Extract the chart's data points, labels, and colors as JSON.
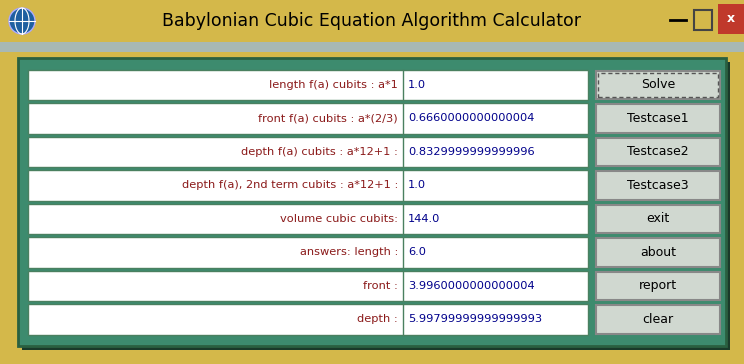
{
  "title": "Babylonian Cubic Equation Algorithm Calculator",
  "title_fontsize": 12.5,
  "bg_outer": "#D4B84A",
  "bg_inner": "#3D8B6E",
  "bg_strip": "#A8B8B4",
  "row_labels": [
    "length f(a) cubits : a*1",
    "front f(a) cubits : a*(2/3)",
    "depth f(a) cubits : a*12+1 :",
    "depth f(a), 2nd term cubits : a*12+1 :",
    "volume cubic cubits:",
    "answers: length :",
    "front :",
    "depth :"
  ],
  "row_values": [
    "1.0",
    "0.6660000000000004",
    "0.8329999999999996",
    "1.0",
    "144.0",
    "6.0",
    "3.9960000000000004",
    "5.99799999999999993"
  ],
  "buttons": [
    "Solve",
    "Testcase1",
    "Testcase2",
    "Testcase3",
    "exit",
    "about",
    "report",
    "clear"
  ],
  "btn_bg": "#D0D8D0",
  "label_color": "#8B1A1A",
  "value_color": "#00008B",
  "field_border": "#4A8060",
  "panel_shadow": "#1A3A2A"
}
